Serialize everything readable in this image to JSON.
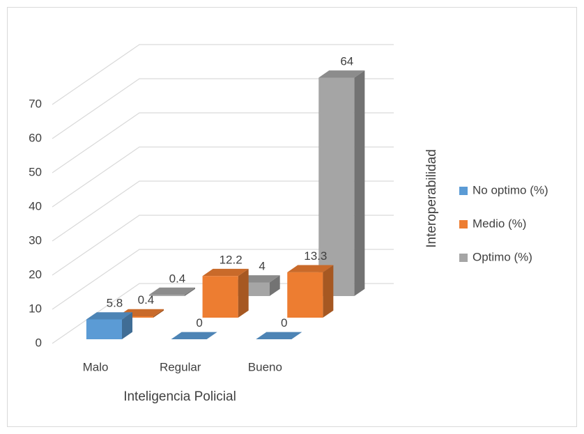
{
  "chart_data": {
    "type": "bar3d",
    "categories": [
      "Malo",
      "Regular",
      "Bueno"
    ],
    "series": [
      {
        "name": "No optimo (%)",
        "color": "#5b9bd5",
        "values": [
          5.8,
          0,
          0
        ]
      },
      {
        "name": "Medio (%)",
        "color": "#ed7d31",
        "values": [
          0.4,
          12.2,
          13.3
        ]
      },
      {
        "name": "Optimo (%)",
        "color": "#a5a5a5",
        "values": [
          0.4,
          4,
          64
        ]
      }
    ],
    "xlabel": "Inteligencia Policial",
    "ylabel": "Interoperabilidad",
    "ylim": [
      0,
      70
    ],
    "yticks": [
      0,
      10,
      20,
      30,
      40,
      50,
      60,
      70
    ],
    "grid": true,
    "legend": "right"
  }
}
